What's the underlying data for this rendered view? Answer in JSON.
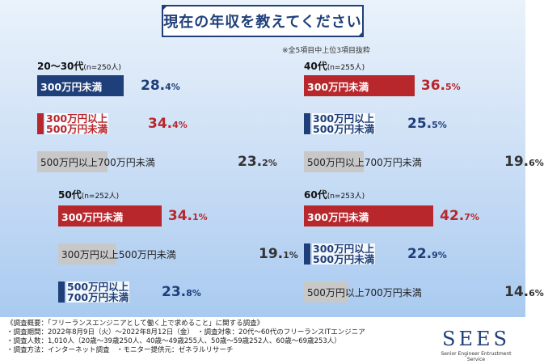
{
  "title": "現在の年収を教えてください",
  "note": "※全5項目中上位3項目抜粋",
  "chart_data": [
    {
      "type": "bar",
      "group": "20～30代",
      "n_label": "(n=250人)",
      "categories": [
        "300万円未満",
        "300万円以上\n500万円未満",
        "500万円以上700万円未満"
      ],
      "values": [
        28.4,
        34.4,
        23.2
      ]
    },
    {
      "type": "bar",
      "group": "40代",
      "n_label": "(n=255人)",
      "categories": [
        "300万円未満",
        "300万円以上\n500万円未満",
        "500万円以上700万円未満"
      ],
      "values": [
        36.5,
        25.5,
        19.6
      ]
    },
    {
      "type": "bar",
      "group": "50代",
      "n_label": "(n=252人)",
      "categories": [
        "300万円未満",
        "300万円以上500万円未満",
        "500万円以上\n700万円未満"
      ],
      "values": [
        34.1,
        19.1,
        23.8
      ]
    },
    {
      "type": "bar",
      "group": "60代",
      "n_label": "(n=253人)",
      "categories": [
        "300万円未満",
        "300万円以上\n500万円未満",
        "500万円以上700万円未満"
      ],
      "values": [
        42.7,
        22.9,
        14.6
      ]
    }
  ],
  "footer": [
    "《調査概要：「フリーランスエンジニアとして働く上で求めること」に関する調査》",
    "・調査期間：2022年8月9日（火）～2022年8月12日（金）　・調査対象：20代～60代のフリーランスITエンジニア",
    "・調査人数：1,010人（20歳～39歳250人、40歳～49歳255人、50歳～59歳252人、60歳～69歳253人）",
    "・調査方法：インターネット調査　・モニター提供元：ゼネラルリサーチ"
  ],
  "logo": {
    "name": "SEES",
    "tagline": "Senior Engineer Entrustment Service"
  },
  "colors": {
    "navy": "#1f3f7a",
    "red": "#b8272c",
    "gray": "#c8c8c8"
  }
}
